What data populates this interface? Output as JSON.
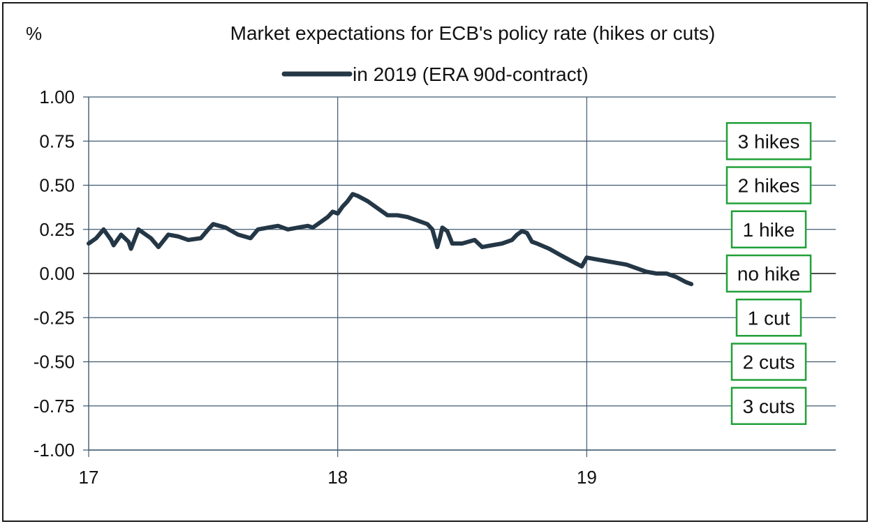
{
  "chart_data": {
    "type": "line",
    "title": "Market expectations for ECB's policy rate (hikes or cuts)",
    "y_unit_label": "%",
    "series": [
      {
        "name": "in 2019 (ERA 90d-contract)",
        "color": "#243746",
        "x": [
          17.0,
          17.03,
          17.06,
          17.09,
          17.1,
          17.13,
          17.16,
          17.17,
          17.2,
          17.25,
          17.28,
          17.32,
          17.36,
          17.4,
          17.45,
          17.48,
          17.5,
          17.55,
          17.6,
          17.65,
          17.68,
          17.72,
          17.76,
          17.8,
          17.84,
          17.88,
          17.9,
          17.92,
          17.96,
          17.98,
          18.0,
          18.02,
          18.04,
          18.06,
          18.08,
          18.12,
          18.16,
          18.2,
          18.24,
          18.28,
          18.32,
          18.36,
          18.38,
          18.4,
          18.41,
          18.42,
          18.44,
          18.46,
          18.5,
          18.55,
          18.58,
          18.62,
          18.66,
          18.7,
          18.72,
          18.74,
          18.76,
          18.78,
          18.8,
          18.85,
          18.9,
          18.94,
          18.98,
          19.0,
          19.04,
          19.08,
          19.12,
          19.16,
          19.2,
          19.24,
          19.28,
          19.32,
          19.36,
          19.4,
          19.42
        ],
        "y": [
          0.17,
          0.2,
          0.25,
          0.19,
          0.16,
          0.22,
          0.18,
          0.14,
          0.25,
          0.2,
          0.15,
          0.22,
          0.21,
          0.19,
          0.2,
          0.25,
          0.28,
          0.26,
          0.22,
          0.2,
          0.25,
          0.26,
          0.27,
          0.25,
          0.26,
          0.27,
          0.26,
          0.28,
          0.32,
          0.35,
          0.34,
          0.38,
          0.41,
          0.45,
          0.44,
          0.41,
          0.37,
          0.33,
          0.33,
          0.32,
          0.3,
          0.28,
          0.25,
          0.15,
          0.2,
          0.26,
          0.24,
          0.17,
          0.17,
          0.19,
          0.15,
          0.16,
          0.17,
          0.19,
          0.22,
          0.24,
          0.23,
          0.18,
          0.17,
          0.14,
          0.1,
          0.07,
          0.04,
          0.09,
          0.08,
          0.07,
          0.06,
          0.05,
          0.03,
          0.01,
          0.0,
          0.0,
          -0.02,
          -0.05,
          -0.06
        ]
      }
    ],
    "x_ticks": [
      17,
      18,
      19
    ],
    "x_tick_labels": [
      "17",
      "18",
      "19"
    ],
    "xlim": [
      17,
      20
    ],
    "y_ticks": [
      1.0,
      0.75,
      0.5,
      0.25,
      0.0,
      -0.25,
      -0.5,
      -0.75,
      -1.0
    ],
    "y_tick_labels": [
      "1.00",
      "0.75",
      "0.50",
      "0.25",
      "0.00",
      "-0.25",
      "-0.50",
      "-0.75",
      "-1.00"
    ],
    "ylim": [
      -1.0,
      1.0
    ],
    "grid": "horizontal and vertical",
    "legend": "top-center",
    "annotations": [
      {
        "label": "3 hikes",
        "y": 0.75
      },
      {
        "label": "2 hikes",
        "y": 0.5
      },
      {
        "label": "1 hike",
        "y": 0.25
      },
      {
        "label": "no hike",
        "y": 0.0
      },
      {
        "label": "1 cut",
        "y": -0.25
      },
      {
        "label": "2 cuts",
        "y": -0.5
      },
      {
        "label": "3 cuts",
        "y": -0.75
      }
    ],
    "colors": {
      "grid": "#3f5a70",
      "zero_line": "#111111",
      "annotation_border": "#21a038"
    }
  }
}
